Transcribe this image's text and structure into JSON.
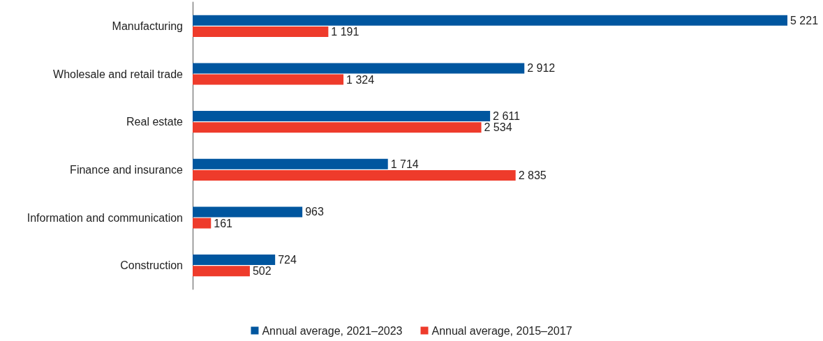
{
  "chart_data": {
    "type": "bar",
    "orientation": "horizontal",
    "categories": [
      "Manufacturing",
      "Wholesale and retail trade",
      "Real estate",
      "Finance and insurance",
      "Information and communication",
      "Construction"
    ],
    "series": [
      {
        "name": "Annual average, 2021–2023",
        "color": "#00569f",
        "values": [
          5221,
          2912,
          2611,
          1714,
          963,
          724
        ],
        "value_labels": [
          "5 221",
          "2 912",
          "2 611",
          "1 714",
          "963",
          "724"
        ]
      },
      {
        "name": "Annual average, 2015–2017",
        "color": "#ee3b2b",
        "values": [
          1191,
          1324,
          2534,
          2835,
          161,
          502
        ],
        "value_labels": [
          "1 191",
          "1 324",
          "2 534",
          "2 835",
          "161",
          "502"
        ]
      }
    ],
    "legend": "bottom",
    "grid": false
  }
}
